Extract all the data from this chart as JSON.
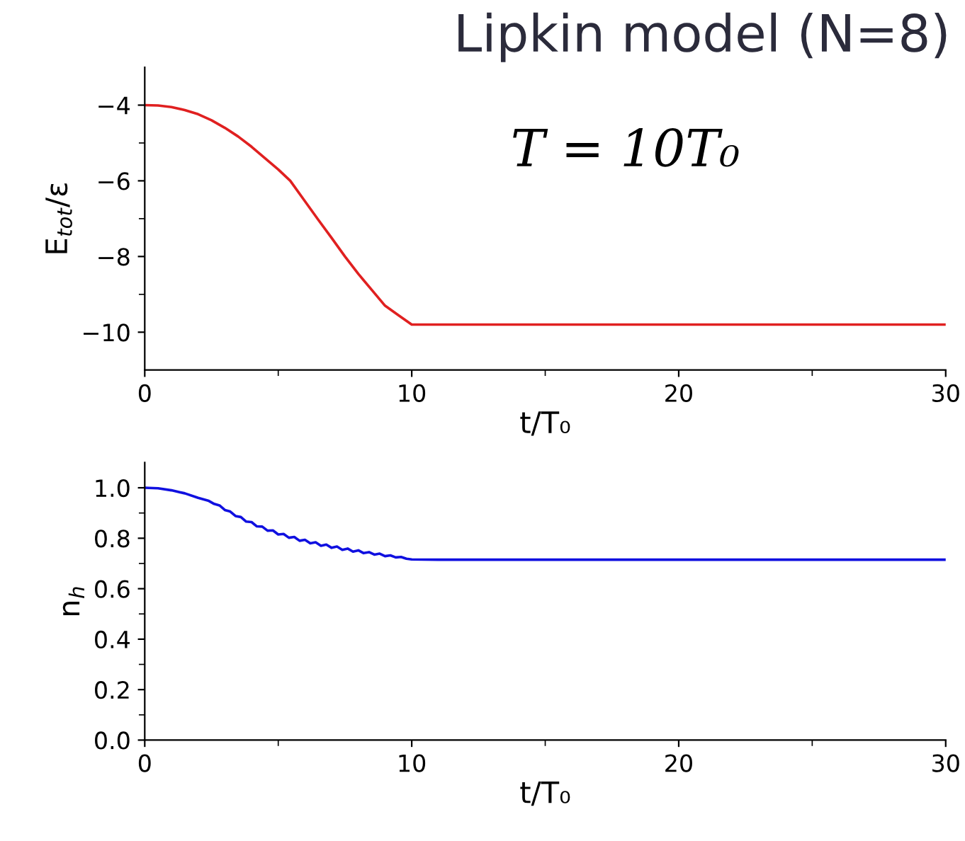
{
  "chart_data": [
    {
      "type": "line",
      "title": "Lipkin model (N=8)",
      "xlabel": "t/T₀",
      "ylabel": "E$_{tot}$/ε",
      "annotations": [
        "T = 10T₀"
      ],
      "x": [
        0,
        0.5,
        1,
        1.5,
        2,
        2.5,
        3,
        3.5,
        4,
        4.5,
        5,
        5.45,
        6,
        6.5,
        7,
        7.5,
        8,
        8.5,
        9,
        9.5,
        10,
        15,
        20,
        25,
        30
      ],
      "series": [
        {
          "color": "#e02020",
          "values": [
            -4,
            -4.01,
            -4.05,
            -4.13,
            -4.24,
            -4.4,
            -4.6,
            -4.83,
            -5.1,
            -5.4,
            -5.7,
            -6,
            -6.54,
            -7.03,
            -7.51,
            -8,
            -8.46,
            -8.88,
            -9.3,
            -9.55,
            -9.8,
            -9.8,
            -9.8,
            -9.8,
            -9.8
          ]
        }
      ],
      "xlim": [
        0,
        30
      ],
      "ylim": [
        -11,
        -3
      ],
      "xticks": [
        0,
        10,
        20,
        30
      ],
      "yticks": [
        -10,
        -8,
        -6,
        -4
      ],
      "grid": false,
      "legend": false,
      "line_style": "solid",
      "marker": "none"
    },
    {
      "type": "line",
      "xlabel": "t/T₀",
      "ylabel": "n$_{h}$",
      "x": [
        0,
        0.5,
        1,
        1.5,
        2,
        2.4,
        2.6,
        2.8,
        3.0,
        3.2,
        3.4,
        3.6,
        3.8,
        4.0,
        4.2,
        4.4,
        4.6,
        4.8,
        5.0,
        5.2,
        5.4,
        5.6,
        5.8,
        6.0,
        6.2,
        6.4,
        6.6,
        6.8,
        7.0,
        7.2,
        7.4,
        7.6,
        7.8,
        8.0,
        8.2,
        8.4,
        8.6,
        8.8,
        9.0,
        9.2,
        9.4,
        9.6,
        9.8,
        10,
        11,
        15,
        20,
        25,
        30
      ],
      "series": [
        {
          "color": "#1010e0",
          "values": [
            1.0,
            0.998,
            0.99,
            0.978,
            0.96,
            0.948,
            0.936,
            0.93,
            0.912,
            0.906,
            0.888,
            0.884,
            0.866,
            0.864,
            0.847,
            0.846,
            0.83,
            0.831,
            0.815,
            0.817,
            0.802,
            0.805,
            0.79,
            0.794,
            0.78,
            0.784,
            0.77,
            0.775,
            0.762,
            0.767,
            0.754,
            0.759,
            0.747,
            0.752,
            0.741,
            0.745,
            0.735,
            0.739,
            0.729,
            0.732,
            0.724,
            0.726,
            0.719,
            0.716,
            0.715,
            0.715,
            0.715,
            0.715,
            0.715
          ]
        }
      ],
      "xlim": [
        0,
        30
      ],
      "ylim": [
        0,
        1.1
      ],
      "xticks": [
        0,
        10,
        20,
        30
      ],
      "yticks": [
        {
          "value": 0,
          "label": "0.0"
        },
        0.2,
        0.4,
        0.6,
        0.8,
        {
          "value": 1,
          "label": "1.0"
        }
      ],
      "grid": false,
      "legend": false,
      "line_style": "solid",
      "marker": "none"
    }
  ]
}
